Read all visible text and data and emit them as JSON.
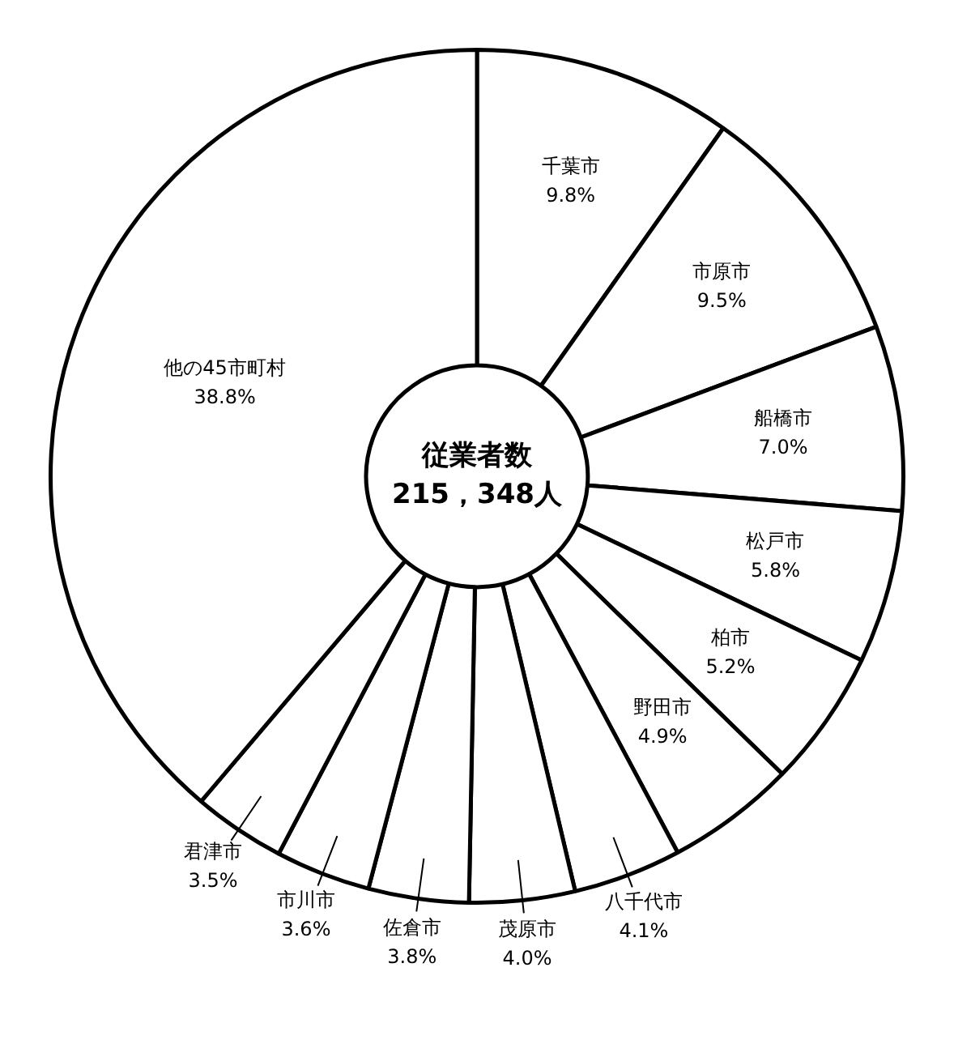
{
  "chart_data": {
    "type": "donut",
    "title": "従業者数",
    "subtitle": "215，348人",
    "categories": [
      "千葉市",
      "市原市",
      "船橋市",
      "松戸市",
      "柏市",
      "野田市",
      "八千代市",
      "茂原市",
      "佐倉市",
      "市川市",
      "君津市",
      "他の45市町村"
    ],
    "values": [
      9.8,
      9.5,
      7.0,
      5.8,
      5.2,
      4.9,
      4.1,
      4.0,
      3.8,
      3.6,
      3.5,
      38.8
    ],
    "value_labels": [
      "9.8%",
      "9.5%",
      "7.0%",
      "5.8%",
      "5.2%",
      "4.9%",
      "4.1%",
      "4.0%",
      "3.8%",
      "3.6%",
      "3.5%",
      "38.8%"
    ],
    "colors": [
      "#ffffff",
      "#ffffff",
      "#ffffff",
      "#ffffff",
      "#ffffff",
      "#ffffff",
      "#ffffff",
      "#ffffff",
      "#ffffff",
      "#ffffff",
      "#ffffff",
      "#ffffff"
    ],
    "legend": false
  }
}
